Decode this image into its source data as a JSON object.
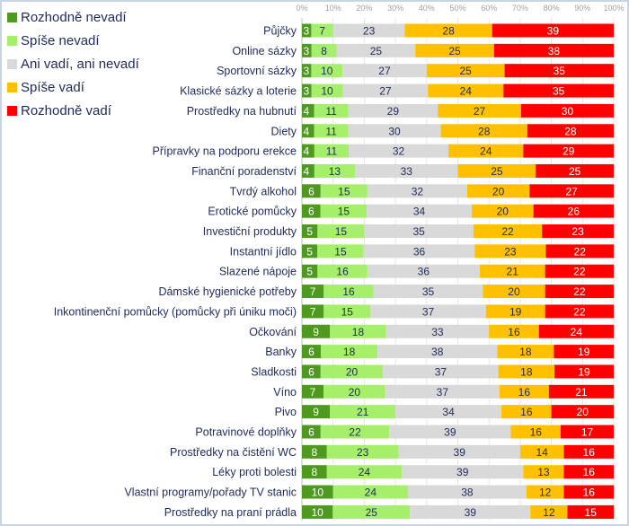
{
  "chart_data": {
    "type": "bar",
    "orientation": "horizontal",
    "stacked": "percent",
    "xlim": [
      0,
      100
    ],
    "x_ticks": [
      "0%",
      "10%",
      "20%",
      "30%",
      "40%",
      "50%",
      "60%",
      "70%",
      "80%",
      "90%",
      "100%"
    ],
    "grid": true,
    "legend_position": "top-left",
    "categories": [
      "Půjčky",
      "Online sázky",
      "Sportovní sázky",
      "Klasické sázky a loterie",
      "Prostředky na hubnutí",
      "Diety",
      "Přípravky na podporu erekce",
      "Finanční poradenství",
      "Tvrdý alkohol",
      "Erotické pomůcky",
      "Investiční produkty",
      "Instantní jídlo",
      "Slazené nápoje",
      "Dámské hygienické potřeby",
      "Inkontinenční pomůcky (pomůcky při úniku moči)",
      "Očkování",
      "Banky",
      "Sladkosti",
      "Víno",
      "Pivo",
      "Potravinové doplňky",
      "Prostředky na čistění WC",
      "Léky proti bolesti",
      "Vlastní programy/pořady TV stanic",
      "Prostředky na praní prádla"
    ],
    "series": [
      {
        "name": "Rozhodně nevadí",
        "color": "#4e9a1e",
        "label_color": "#ffffff",
        "values": [
          3,
          3,
          3,
          3,
          4,
          4,
          4,
          4,
          6,
          6,
          5,
          5,
          5,
          7,
          7,
          9,
          6,
          6,
          7,
          9,
          6,
          8,
          8,
          10,
          10
        ]
      },
      {
        "name": "Spíše nevadí",
        "color": "#a6ef6a",
        "label_color": "#1f2a5a",
        "values": [
          7,
          8,
          10,
          10,
          11,
          11,
          11,
          13,
          15,
          15,
          15,
          15,
          16,
          16,
          15,
          18,
          18,
          20,
          20,
          21,
          22,
          23,
          24,
          24,
          25
        ]
      },
      {
        "name": "Ani vadí, ani nevadí",
        "color": "#d9d9d9",
        "label_color": "#1f2a5a",
        "values": [
          23,
          25,
          27,
          27,
          29,
          30,
          32,
          33,
          32,
          34,
          35,
          36,
          36,
          35,
          37,
          33,
          38,
          37,
          37,
          34,
          39,
          39,
          39,
          38,
          39
        ]
      },
      {
        "name": "Spíše vadí",
        "color": "#ffc000",
        "label_color": "#1f2a5a",
        "values": [
          28,
          25,
          25,
          24,
          27,
          28,
          24,
          25,
          20,
          20,
          22,
          23,
          21,
          20,
          19,
          16,
          18,
          18,
          16,
          16,
          16,
          14,
          13,
          12,
          12
        ]
      },
      {
        "name": "Rozhodně vadí",
        "color": "#ff0000",
        "label_color": "#ffffff",
        "values": [
          39,
          38,
          35,
          35,
          30,
          28,
          29,
          25,
          27,
          26,
          23,
          22,
          22,
          22,
          22,
          24,
          19,
          19,
          21,
          20,
          17,
          16,
          16,
          16,
          15
        ]
      }
    ]
  }
}
